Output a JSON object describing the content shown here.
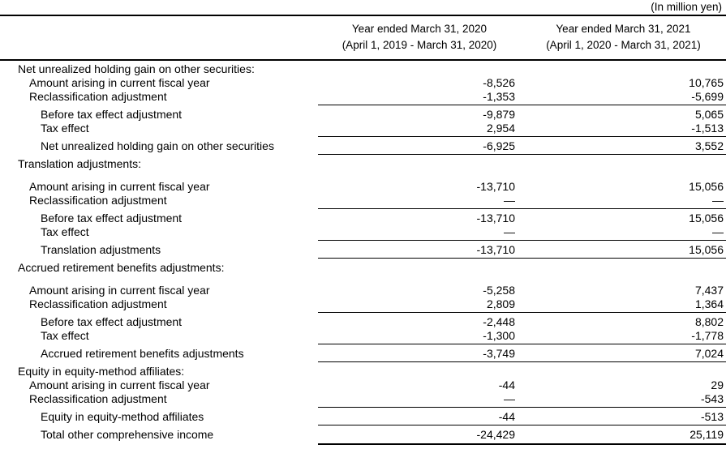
{
  "unit_label": "(In million yen)",
  "columns": [
    {
      "line1": "Year ended March 31, 2020",
      "line2": "(April 1, 2019 - March 31, 2020)"
    },
    {
      "line1": "Year ended March 31, 2021",
      "line2": "(April 1, 2020 - March 31, 2021)"
    }
  ],
  "rows": [
    {
      "label": "Net unrealized holding gain on other securities:",
      "indent": 0,
      "v1": "",
      "v2": "",
      "underline": false,
      "total": false,
      "gap_before": false
    },
    {
      "label": "Amount arising in current fiscal year",
      "indent": 1,
      "v1": "-8,526",
      "v2": "10,765",
      "underline": false,
      "total": false,
      "gap_before": false
    },
    {
      "label": "Reclassification adjustment",
      "indent": 1,
      "v1": "-1,353",
      "v2": "-5,699",
      "underline": true,
      "total": false,
      "gap_before": false
    },
    {
      "label": "Before tax effect adjustment",
      "indent": 2,
      "v1": "-9,879",
      "v2": "5,065",
      "underline": false,
      "total": false,
      "gap_before": false
    },
    {
      "label": "Tax effect",
      "indent": 2,
      "v1": "2,954",
      "v2": "-1,513",
      "underline": true,
      "total": false,
      "gap_before": false
    },
    {
      "label": "Net unrealized holding gain on other securities",
      "indent": 2,
      "v1": "-6,925",
      "v2": "3,552",
      "underline": true,
      "total": false,
      "gap_before": false
    },
    {
      "label": "Translation adjustments:",
      "indent": 0,
      "v1": "",
      "v2": "",
      "underline": false,
      "total": false,
      "gap_before": false
    },
    {
      "label": "Amount arising in current fiscal year",
      "indent": 1,
      "v1": "-13,710",
      "v2": "15,056",
      "underline": false,
      "total": false,
      "gap_before": true
    },
    {
      "label": "Reclassification adjustment",
      "indent": 1,
      "v1": "—",
      "v2": "—",
      "underline": true,
      "total": false,
      "gap_before": false
    },
    {
      "label": "Before tax effect adjustment",
      "indent": 2,
      "v1": "-13,710",
      "v2": "15,056",
      "underline": false,
      "total": false,
      "gap_before": false
    },
    {
      "label": "Tax effect",
      "indent": 2,
      "v1": "—",
      "v2": "—",
      "underline": true,
      "total": false,
      "gap_before": false
    },
    {
      "label": "Translation adjustments",
      "indent": 2,
      "v1": "-13,710",
      "v2": "15,056",
      "underline": true,
      "total": false,
      "gap_before": false
    },
    {
      "label": "Accrued retirement benefits adjustments:",
      "indent": 0,
      "v1": "",
      "v2": "",
      "underline": false,
      "total": false,
      "gap_before": false
    },
    {
      "label": "Amount arising in current fiscal year",
      "indent": 1,
      "v1": "-5,258",
      "v2": "7,437",
      "underline": false,
      "total": false,
      "gap_before": true
    },
    {
      "label": "Reclassification adjustment",
      "indent": 1,
      "v1": "2,809",
      "v2": "1,364",
      "underline": true,
      "total": false,
      "gap_before": false
    },
    {
      "label": "Before tax effect adjustment",
      "indent": 2,
      "v1": "-2,448",
      "v2": "8,802",
      "underline": false,
      "total": false,
      "gap_before": false
    },
    {
      "label": "Tax effect",
      "indent": 2,
      "v1": "-1,300",
      "v2": "-1,778",
      "underline": true,
      "total": false,
      "gap_before": false
    },
    {
      "label": "Accrued retirement benefits adjustments",
      "indent": 2,
      "v1": "-3,749",
      "v2": "7,024",
      "underline": true,
      "total": false,
      "gap_before": false
    },
    {
      "label": "Equity in equity-method affiliates:",
      "indent": 0,
      "v1": "",
      "v2": "",
      "underline": false,
      "total": false,
      "gap_before": false
    },
    {
      "label": "Amount arising in current fiscal year",
      "indent": 1,
      "v1": "-44",
      "v2": "29",
      "underline": false,
      "total": false,
      "gap_before": false
    },
    {
      "label": "Reclassification adjustment",
      "indent": 1,
      "v1": "—",
      "v2": "-543",
      "underline": true,
      "total": false,
      "gap_before": false
    },
    {
      "label": "Equity in equity-method affiliates",
      "indent": 2,
      "v1": "-44",
      "v2": "-513",
      "underline": true,
      "total": false,
      "gap_before": false
    },
    {
      "label": "Total other comprehensive income",
      "indent": 2,
      "v1": "-24,429",
      "v2": "25,119",
      "underline": false,
      "total": true,
      "gap_before": false
    }
  ]
}
